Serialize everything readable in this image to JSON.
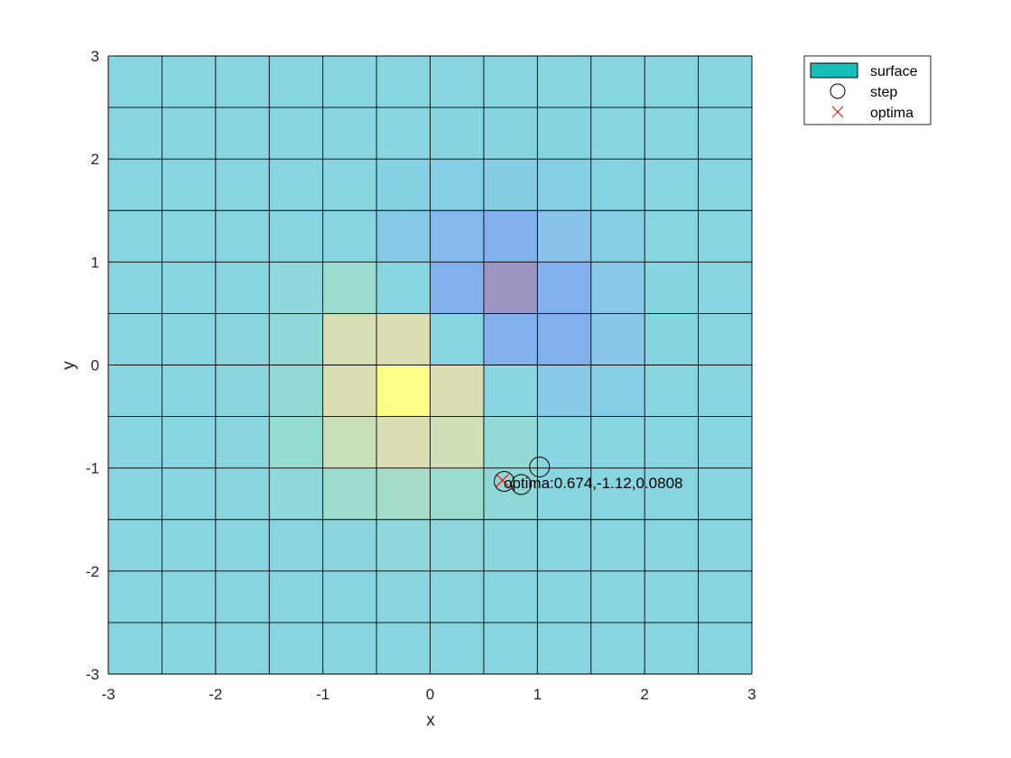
{
  "chart_data": {
    "type": "heatmap",
    "title": "",
    "xlabel": "x",
    "ylabel": "y",
    "xlim": [
      -3,
      3
    ],
    "ylim": [
      -3,
      3
    ],
    "xticks": [
      "-3",
      "-2",
      "-1",
      "0",
      "1",
      "2",
      "3"
    ],
    "yticks": [
      "-3",
      "-2",
      "-1",
      "0",
      "1",
      "2",
      "3"
    ],
    "grid": true,
    "x_edges": [
      -3,
      -2.5,
      -2,
      -1.5,
      -1,
      -0.5,
      0,
      0.5,
      1,
      1.5,
      2,
      2.5,
      3
    ],
    "y_edges": [
      -3,
      -2.5,
      -2,
      -1.5,
      -1,
      -0.5,
      0,
      0.5,
      1,
      1.5,
      2,
      2.5,
      3
    ],
    "z_grid": [
      [
        0.0,
        0.0,
        0.0,
        0.0,
        0.0,
        0.0,
        0.0,
        0.0,
        0.0,
        0.0,
        0.0,
        0.0
      ],
      [
        0.0,
        0.0,
        0.0,
        0.0,
        0.0,
        0.01,
        0.01,
        0.0,
        0.0,
        0.0,
        0.0,
        0.0
      ],
      [
        0.0,
        0.0,
        0.0,
        0.01,
        0.04,
        0.06,
        0.05,
        0.03,
        0.0,
        0.0,
        0.0,
        0.0
      ],
      [
        0.0,
        0.0,
        0.01,
        0.07,
        0.18,
        0.22,
        0.17,
        0.08,
        0.0,
        0.0,
        0.0,
        0.0
      ],
      [
        0.0,
        0.0,
        0.02,
        0.14,
        0.38,
        0.48,
        0.42,
        0.1,
        0.0,
        0.0,
        0.0,
        0.0
      ],
      [
        0.0,
        0.0,
        0.02,
        0.11,
        0.48,
        1.0,
        0.48,
        0.0,
        -0.16,
        -0.1,
        0.0,
        0.0
      ],
      [
        0.0,
        0.0,
        0.01,
        0.08,
        0.45,
        0.48,
        0.0,
        -0.45,
        -0.45,
        -0.18,
        -0.01,
        0.0
      ],
      [
        0.0,
        0.0,
        0.0,
        0.06,
        0.16,
        0.0,
        -0.45,
        -0.65,
        -0.45,
        -0.16,
        -0.01,
        0.0
      ],
      [
        0.0,
        0.0,
        0.0,
        0.0,
        0.0,
        -0.13,
        -0.35,
        -0.45,
        -0.24,
        -0.08,
        0.0,
        0.0
      ],
      [
        0.0,
        0.0,
        0.0,
        0.0,
        0.0,
        -0.06,
        -0.1,
        -0.11,
        -0.08,
        -0.04,
        0.0,
        0.0
      ],
      [
        0.0,
        0.0,
        0.0,
        0.0,
        0.0,
        0.0,
        -0.01,
        -0.01,
        -0.01,
        0.0,
        0.0,
        0.0
      ],
      [
        0.0,
        0.0,
        0.0,
        0.0,
        0.0,
        0.0,
        0.0,
        0.0,
        0.0,
        0.0,
        0.0,
        0.0
      ]
    ],
    "z_range": [
      -0.65,
      1.0
    ],
    "surface_alpha": 0.5,
    "step_points": [
      {
        "x": 1.02,
        "y": -0.99
      },
      {
        "x": 0.85,
        "y": -1.16
      },
      {
        "x": 0.69,
        "y": -1.13
      }
    ],
    "optima": {
      "x": 0.674,
      "y": -1.12,
      "z": 0.0808
    },
    "annotation": "optima:0.674,-1.12,0.0808",
    "legend": {
      "position": "top-right",
      "entries": [
        {
          "label": "surface",
          "kind": "patch",
          "color": "#16bdb9"
        },
        {
          "label": "step",
          "kind": "circle",
          "color": "#000000"
        },
        {
          "label": "optima",
          "kind": "x",
          "color": "#ff0000"
        }
      ]
    },
    "colors": {
      "axis": "#262626",
      "grid_line": "#000000",
      "step_marker": "#000000",
      "optima_marker": "#ff0000"
    }
  }
}
